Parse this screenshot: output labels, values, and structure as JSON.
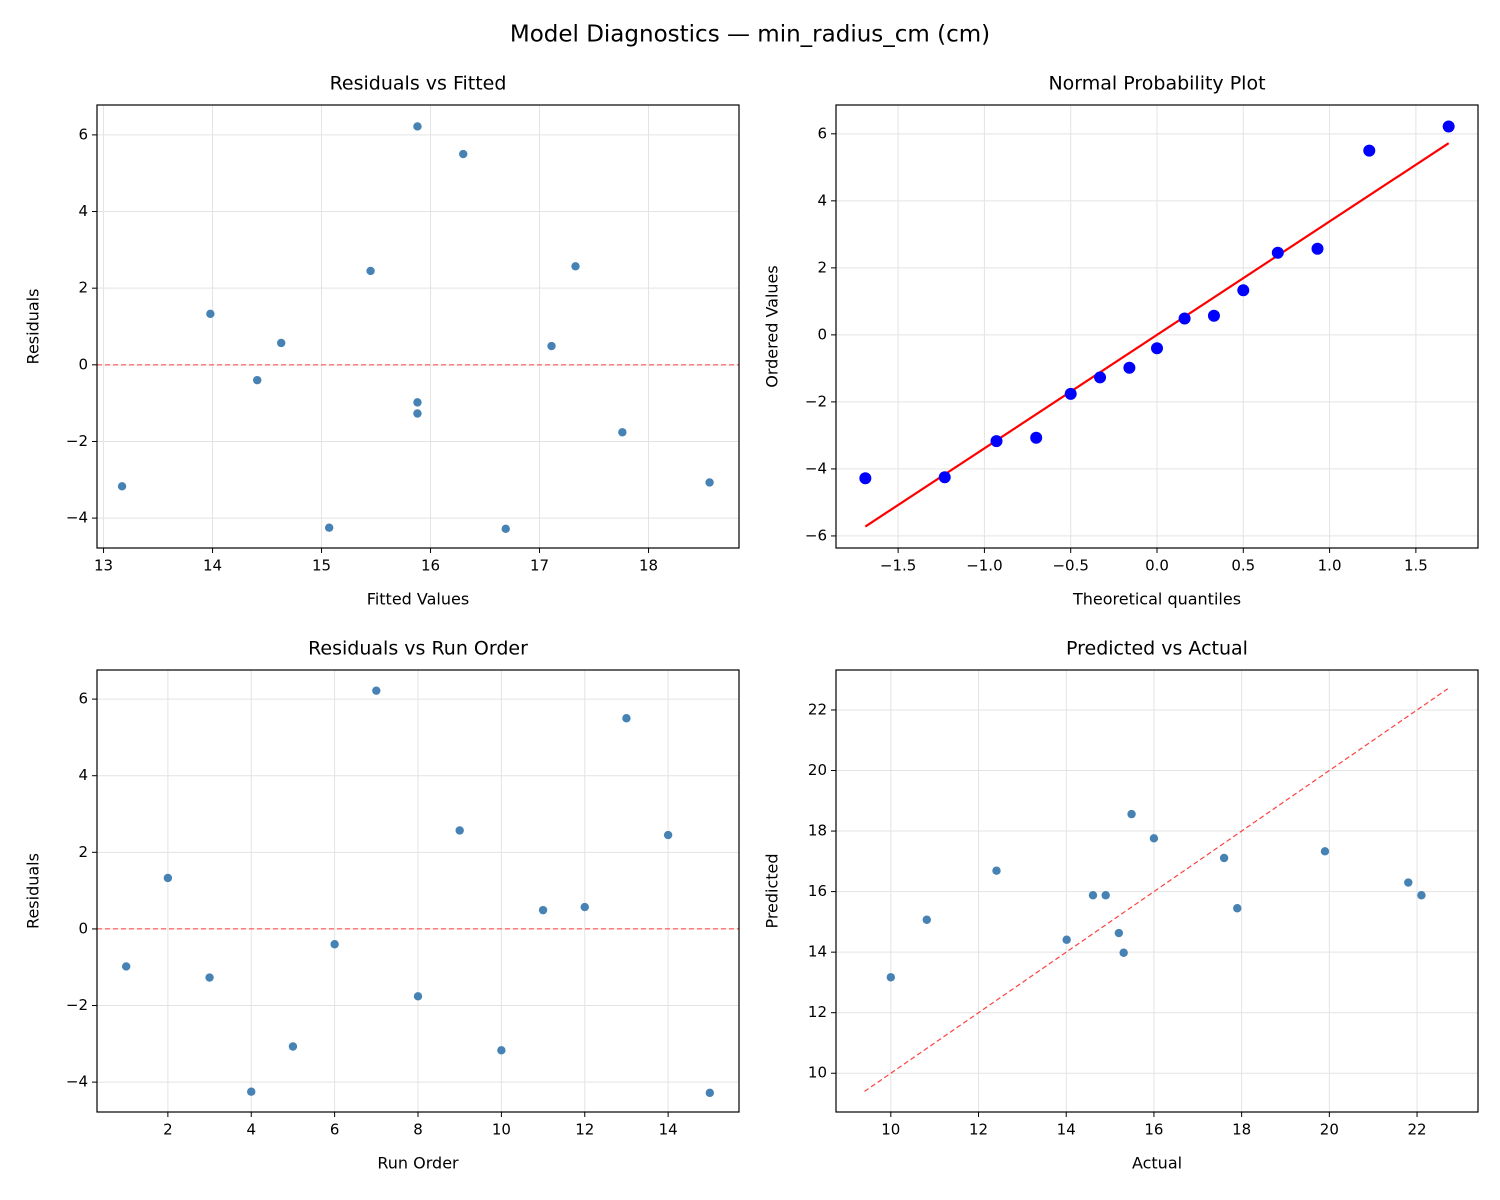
{
  "title": "Model Diagnostics — min_radius_cm (cm)",
  "chart_data": [
    {
      "type": "scatter",
      "title": "Residuals vs Fitted",
      "x_label": "Fitted Values",
      "y_label": "Residuals",
      "x": [
        15.88,
        13.98,
        15.88,
        15.07,
        18.56,
        14.41,
        15.88,
        17.76,
        17.33,
        13.17,
        17.11,
        14.63,
        16.3,
        15.45,
        16.69
      ],
      "values": [
        -0.98,
        1.33,
        -1.27,
        -4.25,
        -3.07,
        -0.4,
        6.22,
        -1.76,
        2.57,
        -3.17,
        0.49,
        0.57,
        5.5,
        2.45,
        -4.28
      ],
      "color": "#4682b4",
      "hline": 0,
      "hline_color": "#ff0000",
      "grid": true,
      "xlim": [
        12.94,
        18.83
      ],
      "xticks": [
        13,
        14,
        15,
        16,
        17,
        18
      ],
      "ylim": [
        -4.78,
        6.78
      ],
      "yticks": [
        {
          "value": -4,
          "label": "−4"
        },
        {
          "value": -2,
          "label": "−2"
        },
        0,
        2,
        4,
        6
      ]
    },
    {
      "type": "scatter",
      "title": "Normal Probability Plot",
      "x_label": "Theoretical quantiles",
      "y_label": "Ordered Values",
      "x": [
        -1.69,
        -1.23,
        -0.93,
        -0.7,
        -0.5,
        -0.33,
        -0.16,
        0.0,
        0.16,
        0.33,
        0.5,
        0.7,
        0.93,
        1.23,
        1.69
      ],
      "values": [
        -4.28,
        -4.25,
        -3.17,
        -3.07,
        -1.76,
        -1.27,
        -0.98,
        -0.4,
        0.49,
        0.57,
        1.33,
        2.45,
        2.57,
        5.5,
        6.22
      ],
      "color": "#0000ff",
      "grid": true,
      "line": {
        "x": [
          -1.69,
          1.69
        ],
        "values": [
          -5.72,
          5.72
        ],
        "color": "#ff0000",
        "style": "solid"
      },
      "xlim": [
        -1.86,
        1.86
      ],
      "xticks": [
        {
          "value": -1.5,
          "label": "−1.5"
        },
        {
          "value": -1,
          "label": "−1.0"
        },
        {
          "value": -0.5,
          "label": "−0.5"
        },
        {
          "value": 0,
          "label": "0.0"
        },
        0.5,
        {
          "value": 1,
          "label": "1.0"
        },
        1.5
      ],
      "ylim": [
        -6.36,
        6.86
      ],
      "yticks": [
        {
          "value": -6,
          "label": "−6"
        },
        {
          "value": -4,
          "label": "−4"
        },
        {
          "value": -2,
          "label": "−2"
        },
        0,
        2,
        4,
        6
      ]
    },
    {
      "type": "scatter",
      "title": "Residuals vs Run Order",
      "x_label": "Run Order",
      "y_label": "Residuals",
      "x": [
        1,
        2,
        3,
        4,
        5,
        6,
        7,
        8,
        9,
        10,
        11,
        12,
        13,
        14,
        15
      ],
      "values": [
        -0.98,
        1.33,
        -1.27,
        -4.25,
        -3.07,
        -0.4,
        6.22,
        -1.76,
        2.57,
        -3.17,
        0.49,
        0.57,
        5.5,
        2.45,
        -4.28
      ],
      "color": "#4682b4",
      "hline": 0,
      "hline_color": "#ff0000",
      "grid": true,
      "xlim": [
        0.3,
        15.7
      ],
      "xticks": [
        2,
        4,
        6,
        8,
        10,
        12,
        14
      ],
      "ylim": [
        -4.78,
        6.76
      ],
      "yticks": [
        {
          "value": -4,
          "label": "−4"
        },
        {
          "value": -2,
          "label": "−2"
        },
        0,
        2,
        4,
        6
      ]
    },
    {
      "type": "scatter",
      "title": "Predicted vs Actual",
      "x_label": "Actual",
      "y_label": "Predicted",
      "x": [
        14.9,
        15.31,
        14.61,
        10.82,
        15.49,
        14.01,
        22.1,
        16.0,
        19.9,
        10.0,
        17.6,
        15.2,
        21.8,
        17.9,
        12.41
      ],
      "values": [
        15.88,
        13.98,
        15.88,
        15.07,
        18.56,
        14.41,
        15.88,
        17.76,
        17.33,
        13.17,
        17.11,
        14.63,
        16.3,
        15.45,
        16.69
      ],
      "color": "#4682b4",
      "grid": true,
      "line": {
        "x": [
          9.4,
          22.7
        ],
        "values": [
          9.4,
          22.7
        ],
        "color": "#ff0000",
        "style": "dashed"
      },
      "xlim": [
        8.75,
        23.39
      ],
      "xticks": [
        10,
        12,
        14,
        16,
        18,
        20,
        22
      ],
      "ylim": [
        8.72,
        23.32
      ],
      "yticks": [
        10,
        12,
        14,
        16,
        18,
        20,
        22
      ]
    }
  ]
}
